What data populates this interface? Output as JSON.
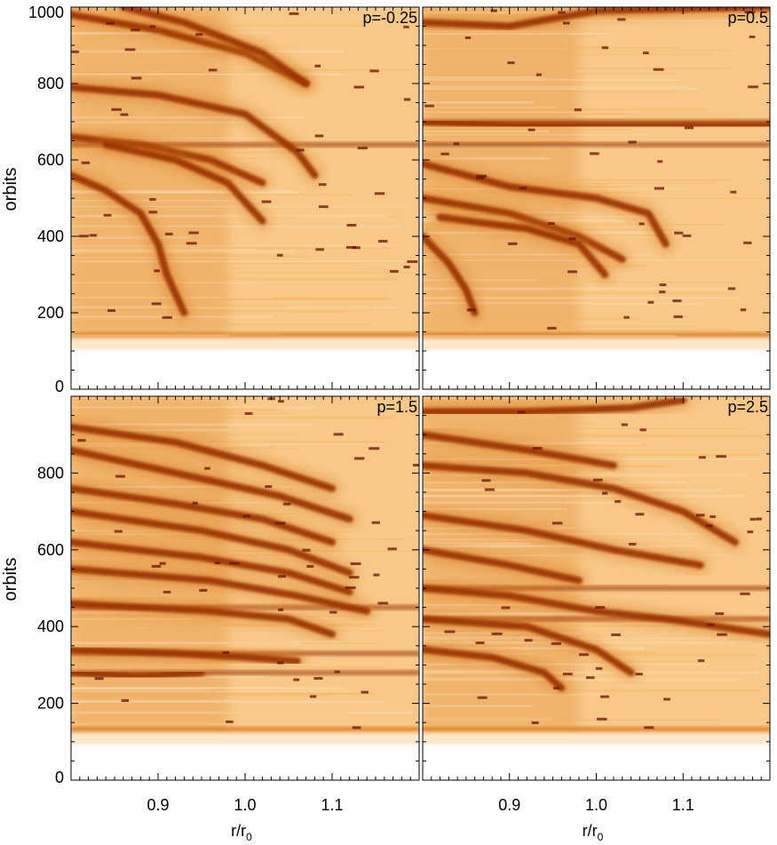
{
  "chart_data": {
    "type": "heatmap",
    "colormap": [
      "#ffffff",
      "#fbe3bd",
      "#f4b25c",
      "#d9781f",
      "#9a3305",
      "#6a1000"
    ],
    "panels": [
      {
        "label": "p=-0.25",
        "xlabel": "",
        "ylabel": "orbits",
        "xlim": [
          0.8,
          1.2
        ],
        "ylim": [
          0,
          1000
        ],
        "xticks": [],
        "yticks": [
          "0",
          "200",
          "400",
          "600",
          "800",
          "1000"
        ],
        "onset": 140,
        "tracks": [
          {
            "points": [
              [
                0.8,
                980
              ],
              [
                0.9,
                940
              ],
              [
                1.0,
                880
              ],
              [
                1.07,
                800
              ]
            ]
          },
          {
            "points": [
              [
                0.86,
                1000
              ],
              [
                0.93,
                960
              ],
              [
                1.02,
                880
              ],
              [
                1.07,
                800
              ]
            ]
          },
          {
            "points": [
              [
                0.8,
                790
              ],
              [
                0.9,
                770
              ],
              [
                1.0,
                720
              ],
              [
                1.06,
                620
              ],
              [
                1.08,
                560
              ]
            ]
          },
          {
            "points": [
              [
                0.8,
                660
              ],
              [
                0.88,
                640
              ],
              [
                0.96,
                600
              ],
              [
                1.02,
                540
              ]
            ]
          },
          {
            "points": [
              [
                0.84,
                640
              ],
              [
                0.92,
                600
              ],
              [
                0.98,
                540
              ],
              [
                1.02,
                440
              ]
            ]
          },
          {
            "points": [
              [
                0.8,
                560
              ],
              [
                0.84,
                520
              ],
              [
                0.88,
                460
              ],
              [
                0.9,
                380
              ],
              [
                0.91,
                300
              ],
              [
                0.93,
                200
              ]
            ]
          }
        ],
        "bands": [
          640
        ]
      },
      {
        "label": "p=0.5",
        "xlabel": "",
        "ylabel": "",
        "xlim": [
          0.8,
          1.2
        ],
        "ylim": [
          0,
          1000
        ],
        "xticks": [],
        "yticks": [],
        "onset": 140,
        "tracks": [
          {
            "points": [
              [
                0.8,
                960
              ],
              [
                0.9,
                950
              ],
              [
                1.0,
                990
              ],
              [
                1.2,
                1000
              ]
            ]
          },
          {
            "points": [
              [
                0.8,
                700
              ],
              [
                0.9,
                690
              ],
              [
                1.0,
                690
              ],
              [
                1.2,
                690
              ]
            ]
          },
          {
            "points": [
              [
                0.8,
                590
              ],
              [
                0.9,
                530
              ],
              [
                1.0,
                500
              ],
              [
                1.06,
                460
              ],
              [
                1.08,
                380
              ]
            ]
          },
          {
            "points": [
              [
                0.8,
                500
              ],
              [
                0.9,
                460
              ],
              [
                0.98,
                400
              ],
              [
                1.03,
                340
              ]
            ]
          },
          {
            "points": [
              [
                0.82,
                450
              ],
              [
                0.92,
                420
              ],
              [
                0.98,
                380
              ],
              [
                1.01,
                300
              ]
            ]
          },
          {
            "points": [
              [
                0.8,
                400
              ],
              [
                0.83,
                330
              ],
              [
                0.85,
                260
              ],
              [
                0.86,
                200
              ]
            ]
          }
        ],
        "bands": [
          700,
          640
        ]
      },
      {
        "label": "p=1.5",
        "xlabel": "r/r",
        "xlabel_sub": "0",
        "ylabel": "orbits",
        "xlim": [
          0.8,
          1.2
        ],
        "ylim": [
          0,
          1000
        ],
        "xticks": [
          "0.9",
          "1.0",
          "1.1"
        ],
        "yticks": [
          "0",
          "200",
          "400",
          "600",
          "800"
        ],
        "onset": 130,
        "tracks": [
          {
            "points": [
              [
                0.8,
                920
              ],
              [
                0.92,
                880
              ],
              [
                1.02,
                820
              ],
              [
                1.1,
                760
              ]
            ]
          },
          {
            "points": [
              [
                0.8,
                860
              ],
              [
                0.92,
                800
              ],
              [
                1.04,
                740
              ],
              [
                1.12,
                680
              ]
            ]
          },
          {
            "points": [
              [
                0.8,
                760
              ],
              [
                0.92,
                720
              ],
              [
                1.02,
                680
              ],
              [
                1.1,
                620
              ]
            ]
          },
          {
            "points": [
              [
                0.8,
                700
              ],
              [
                0.95,
                650
              ],
              [
                1.05,
                600
              ],
              [
                1.12,
                540
              ]
            ]
          },
          {
            "points": [
              [
                0.8,
                620
              ],
              [
                0.95,
                580
              ],
              [
                1.05,
                540
              ],
              [
                1.12,
                490
              ]
            ]
          },
          {
            "points": [
              [
                0.8,
                550
              ],
              [
                0.96,
                520
              ],
              [
                1.06,
                480
              ],
              [
                1.14,
                440
              ]
            ]
          },
          {
            "points": [
              [
                0.8,
                460
              ],
              [
                0.96,
                440
              ],
              [
                1.05,
                420
              ],
              [
                1.1,
                380
              ]
            ]
          },
          {
            "points": [
              [
                0.8,
                340
              ],
              [
                0.92,
                330
              ],
              [
                1.0,
                320
              ],
              [
                1.06,
                310
              ]
            ]
          },
          {
            "points": [
              [
                0.8,
                280
              ],
              [
                0.88,
                270
              ],
              [
                0.95,
                280
              ]
            ]
          }
        ],
        "bands": [
          450,
          330,
          280
        ]
      },
      {
        "label": "p=2.5",
        "xlabel": "r/r",
        "xlabel_sub": "0",
        "ylabel": "",
        "xlim": [
          0.8,
          1.2
        ],
        "ylim": [
          0,
          1000
        ],
        "xticks": [
          "0.9",
          "1.0",
          "1.1"
        ],
        "yticks": [],
        "onset": 130,
        "tracks": [
          {
            "points": [
              [
                0.8,
                960
              ],
              [
                0.92,
                960
              ],
              [
                1.04,
                970
              ],
              [
                1.1,
                990
              ]
            ]
          },
          {
            "points": [
              [
                0.8,
                900
              ],
              [
                0.92,
                860
              ],
              [
                1.02,
                820
              ]
            ]
          },
          {
            "points": [
              [
                0.8,
                820
              ],
              [
                0.92,
                800
              ],
              [
                1.02,
                760
              ],
              [
                1.1,
                700
              ],
              [
                1.16,
                620
              ]
            ]
          },
          {
            "points": [
              [
                0.8,
                690
              ],
              [
                0.92,
                650
              ],
              [
                1.02,
                600
              ],
              [
                1.12,
                560
              ]
            ]
          },
          {
            "points": [
              [
                0.8,
                600
              ],
              [
                0.9,
                560
              ],
              [
                0.98,
                520
              ]
            ]
          },
          {
            "points": [
              [
                0.8,
                500
              ],
              [
                0.9,
                480
              ],
              [
                1.0,
                440
              ],
              [
                1.08,
                420
              ],
              [
                1.2,
                380
              ]
            ]
          },
          {
            "points": [
              [
                0.8,
                420
              ],
              [
                0.92,
                400
              ],
              [
                1.0,
                340
              ],
              [
                1.04,
                280
              ]
            ]
          },
          {
            "points": [
              [
                0.8,
                340
              ],
              [
                0.88,
                320
              ],
              [
                0.94,
                280
              ],
              [
                0.96,
                240
              ]
            ]
          }
        ],
        "bands": [
          500,
          420
        ]
      }
    ]
  }
}
